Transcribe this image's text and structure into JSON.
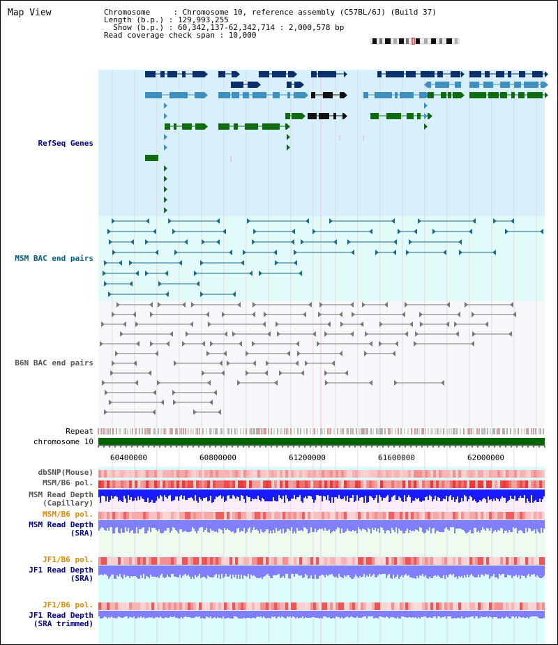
{
  "view_title": "Map View",
  "info": {
    "chromosome_line": "Chromosome     : Chromosome 10, reference assembly (C57BL/6J) (Build 37)",
    "length_line": "Length (b.p.) : 129,993,255",
    "show_line": "  Show (b.p.) : 60,342,137-62,342,714 : 2,000,578 bp",
    "coverage_line": "Read coverage check span : 10,000"
  },
  "tracks": {
    "refseq": "RefSeq Genes",
    "msm_bac": "MSM BAC end pairs",
    "b6n_bac": "B6N BAC end pairs",
    "repeat": "Repeat",
    "chromosome": "chromosome 10",
    "dbsnp": "dbSNP(Mouse)",
    "msm_b6_pol_1": "MSM/B6 pol.",
    "msm_read_depth_cap_1": "MSM Read Depth",
    "msm_read_depth_cap_2": "(Capillary)",
    "msm_b6_pol_2": "MSM/B6 pol.",
    "msm_read_depth_sra_1": "MSM Read Depth",
    "msm_read_depth_sra_2": "(SRA)",
    "jf1_b6_pol_1": "JF1/B6 pol.",
    "jf1_read_depth_sra_1": "JF1 Read Depth",
    "jf1_read_depth_sra_2": "(SRA)",
    "jf1_b6_pol_2": "JF1/B6 pol.",
    "jf1_read_depth_trim_1": "JF1 Read Depth",
    "jf1_read_depth_trim_2": "(SRA trimmed)"
  },
  "axis_ticks": [
    "60400000",
    "60800000",
    "61200000",
    "61600000",
    "62000000"
  ],
  "colors": {
    "gene_dark": "#0b2f6b",
    "gene_mid": "#3f8fbf",
    "gene_green": "#0f6a10",
    "bac_msm": "#1a6a8a",
    "bac_b6n": "#777777",
    "chrom_bar": "#006400",
    "depth_blue": "#1a1aff",
    "depth_lavender": "#7f7fff"
  }
}
